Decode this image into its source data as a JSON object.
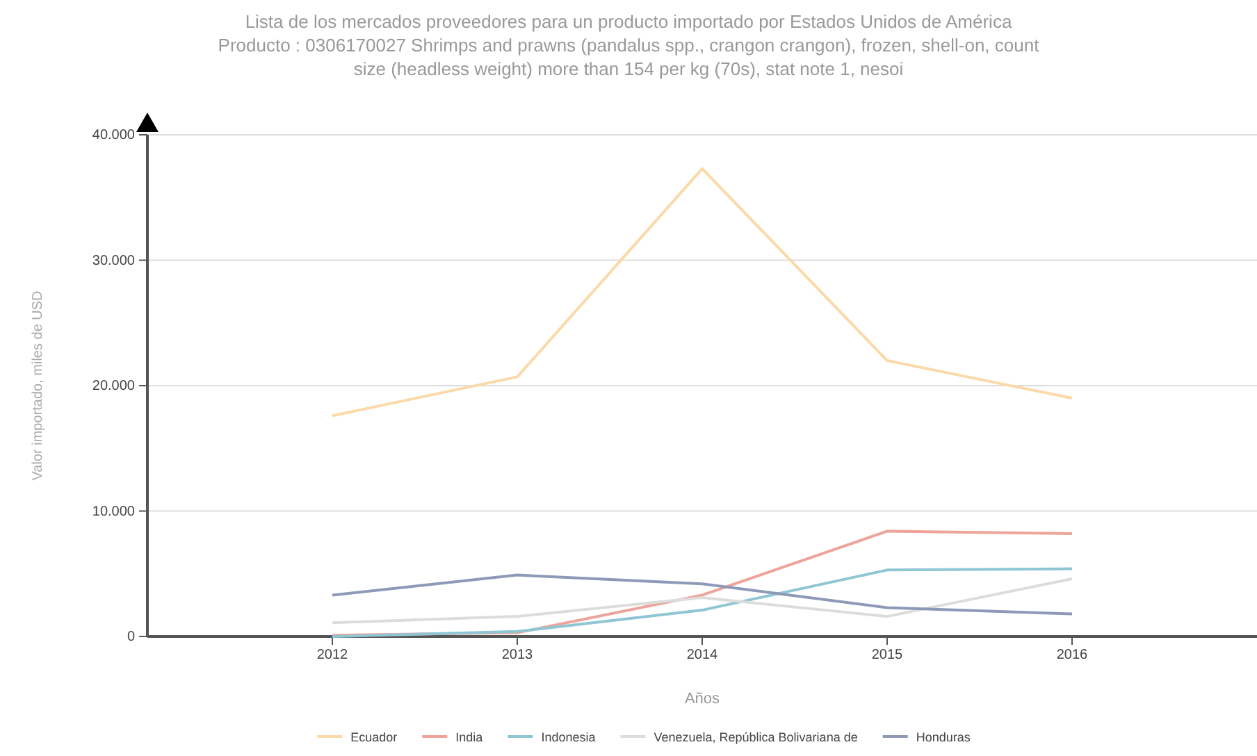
{
  "chart_data": {
    "type": "line",
    "title": "Lista de los mercados proveedores para un producto importado por Estados Unidos de América",
    "subtitle": "Producto : 0306170027 Shrimps and prawns (pandalus spp., crangon crangon), frozen, shell-on, count size (headless weight) more than 154 per kg (70s), stat note 1, nesoi",
    "xlabel": "Años",
    "ylabel": "Valor importado, miles de USD",
    "x": [
      2012,
      2013,
      2014,
      2015,
      2016
    ],
    "xlim": [
      2011,
      2017
    ],
    "xticks": [
      2012,
      2013,
      2014,
      2015,
      2016
    ],
    "ylim": [
      0,
      40000
    ],
    "yticks": [
      {
        "value": 0,
        "label": "0"
      },
      {
        "value": 10000,
        "label": "10.000"
      },
      {
        "value": 20000,
        "label": "20.000"
      },
      {
        "value": 30000,
        "label": "30.000"
      },
      {
        "value": 40000,
        "label": "40.000"
      }
    ],
    "grid": "y",
    "legend": "bottom",
    "marker": "none",
    "series": [
      {
        "name": "Ecuador",
        "color": "#fbd9a8",
        "values": [
          17600,
          20700,
          37300,
          22000,
          19000
        ]
      },
      {
        "name": "India",
        "color": "#eea49a",
        "values": [
          100,
          300,
          3300,
          8400,
          8200
        ]
      },
      {
        "name": "Indonesia",
        "color": "#8ec6d4",
        "values": [
          0,
          400,
          2100,
          5300,
          5400
        ]
      },
      {
        "name": "Venezuela, República Bolivariana de",
        "color": "#dcdcdc",
        "values": [
          1100,
          1600,
          3100,
          1600,
          4600
        ]
      },
      {
        "name": "Honduras",
        "color": "#8e99b8",
        "values": [
          3300,
          4900,
          4200,
          2300,
          1800
        ]
      }
    ]
  }
}
